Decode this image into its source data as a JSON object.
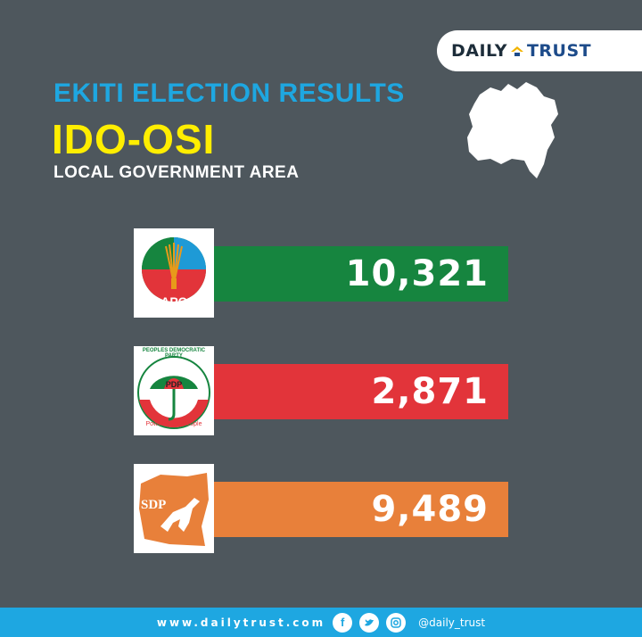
{
  "brand": {
    "daily": "DAILY",
    "trust": "TRUST"
  },
  "header": {
    "title": "EKITI ELECTION RESULTS",
    "lga": "IDO-OSI",
    "subtitle": "LOCAL GOVERNMENT AREA"
  },
  "chart_data": {
    "type": "bar",
    "title": "EKITI ELECTION RESULTS",
    "categories": [
      "APC",
      "PDP",
      "SDP"
    ],
    "values": [
      10321,
      2871,
      9489
    ],
    "value_labels": [
      "10,321",
      "2,871",
      "9,489"
    ],
    "colors": [
      "#16853f",
      "#e2343a",
      "#e8803a"
    ],
    "grid": false
  },
  "logos": {
    "apc_text": "APC",
    "pdp_text": "PDP",
    "pdp_ring_text": "PEOPLES DEMOCRATIC PARTY",
    "pdp_motto": "Power to the People",
    "sdp_text": "SDP"
  },
  "footer": {
    "url": "www.dailytrust.com",
    "handle": "@daily_trust"
  },
  "icons": [
    "facebook-icon",
    "twitter-icon",
    "instagram-icon"
  ]
}
